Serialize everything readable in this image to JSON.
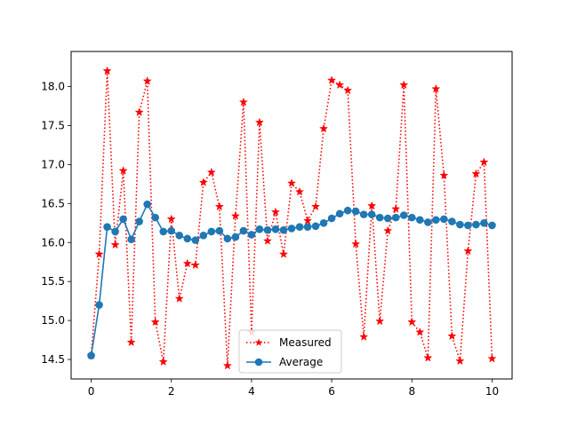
{
  "chart_data": {
    "type": "line",
    "title": "",
    "xlabel": "",
    "ylabel": "",
    "xlim": [
      -0.5,
      10.5
    ],
    "ylim": [
      14.25,
      18.45
    ],
    "xticks": [
      0,
      2,
      4,
      6,
      8,
      10
    ],
    "xtick_labels": [
      "0",
      "2",
      "4",
      "6",
      "8",
      "10"
    ],
    "yticks": [
      14.5,
      15.0,
      15.5,
      16.0,
      16.5,
      17.0,
      17.5,
      18.0
    ],
    "ytick_labels": [
      "14.5",
      "15.0",
      "15.5",
      "16.0",
      "16.5",
      "17.0",
      "17.5",
      "18.0"
    ],
    "grid": false,
    "legend_position": "lower-center",
    "x": [
      0.0,
      0.2,
      0.4,
      0.6,
      0.8,
      1.0,
      1.2,
      1.4,
      1.6,
      1.8,
      2.0,
      2.2,
      2.4,
      2.6,
      2.8,
      3.0,
      3.2,
      3.4,
      3.6,
      3.8,
      4.0,
      4.2,
      4.4,
      4.6,
      4.8,
      5.0,
      5.2,
      5.4,
      5.6,
      5.8,
      6.0,
      6.2,
      6.4,
      6.6,
      6.8,
      7.0,
      7.2,
      7.4,
      7.6,
      7.8,
      8.0,
      8.2,
      8.4,
      8.6,
      8.8,
      9.0,
      9.2,
      9.4,
      9.6,
      9.8,
      10.0
    ],
    "series": [
      {
        "name": "Measured",
        "color": "#ff0000",
        "linestyle": "dotted",
        "marker": "star",
        "values": [
          14.55,
          15.85,
          18.2,
          15.97,
          16.92,
          14.72,
          17.67,
          18.07,
          14.98,
          14.47,
          16.3,
          15.28,
          15.73,
          15.71,
          16.77,
          16.9,
          16.46,
          14.42,
          16.34,
          17.8,
          14.85,
          17.54,
          16.02,
          16.39,
          15.85,
          16.76,
          16.65,
          16.28,
          16.46,
          17.46,
          18.08,
          18.02,
          17.95,
          15.98,
          14.79,
          16.47,
          14.99,
          16.15,
          16.43,
          18.02,
          14.98,
          14.85,
          14.52,
          17.97,
          16.86,
          14.8,
          14.48,
          15.89,
          16.88,
          17.03,
          14.51
        ]
      },
      {
        "name": "Average",
        "color": "#1f77b4",
        "linestyle": "solid",
        "marker": "circle",
        "values": [
          14.55,
          15.2,
          16.2,
          16.14,
          16.3,
          16.04,
          16.27,
          16.49,
          16.32,
          16.14,
          16.15,
          16.09,
          16.05,
          16.03,
          16.09,
          16.14,
          16.15,
          16.05,
          16.07,
          16.15,
          16.1,
          16.17,
          16.16,
          16.17,
          16.16,
          16.18,
          16.2,
          16.2,
          16.21,
          16.25,
          16.31,
          16.37,
          16.41,
          16.4,
          16.36,
          16.36,
          16.32,
          16.31,
          16.32,
          16.35,
          16.32,
          16.29,
          16.26,
          16.29,
          16.3,
          16.27,
          16.23,
          16.22,
          16.23,
          16.25,
          16.22
        ]
      }
    ]
  }
}
